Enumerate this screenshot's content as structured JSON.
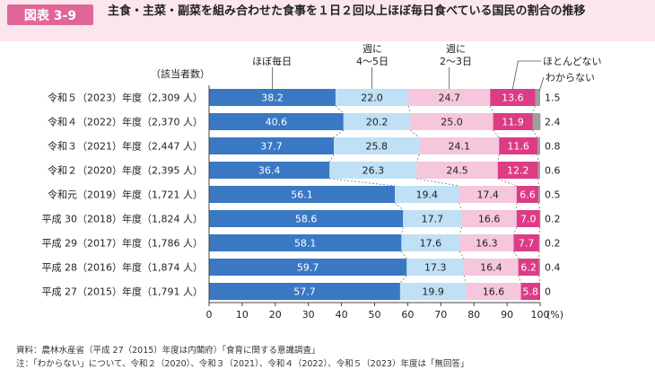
{
  "header": {
    "figure_label": "図表 3-9",
    "title": "主食・主菜・副菜を組み合わせた食事を１日２回以上ほぼ毎日食べている国民の割合の推移"
  },
  "chart_data": {
    "type": "bar",
    "orientation": "horizontal",
    "stacked": true,
    "row_axis_header": "（該当者数）",
    "categories": [
      "令和５（2023）年度（2,309 人）",
      "令和４（2022）年度（2,370 人）",
      "令和３（2021）年度（2,447 人）",
      "令和２（2020）年度（2,395 人）",
      "令和元（2019）年度（1,721 人）",
      "平成 30（2018）年度（1,824 人）",
      "平成 29（2017）年度（1,786 人）",
      "平成 28（2016）年度（1,874 人）",
      "平成 27（2015）年度（1,791 人）"
    ],
    "series": [
      {
        "name": "ほぼ毎日",
        "color": "#3a78c3",
        "label_color": "#ffffff",
        "values": [
          38.2,
          40.6,
          37.7,
          36.4,
          56.1,
          58.6,
          58.1,
          59.7,
          57.7
        ]
      },
      {
        "name": "週に4〜5日",
        "color": "#bfe0f5",
        "label_color": "#222222",
        "values": [
          22.0,
          20.2,
          25.8,
          26.3,
          19.4,
          17.7,
          17.6,
          17.3,
          19.9
        ]
      },
      {
        "name": "週に2〜3日",
        "color": "#f5c6dc",
        "label_color": "#222222",
        "values": [
          24.7,
          25.0,
          24.1,
          24.5,
          17.4,
          16.6,
          16.3,
          16.4,
          16.6
        ]
      },
      {
        "name": "ほとんどない",
        "color": "#dc3c86",
        "label_color": "#ffffff",
        "values": [
          13.6,
          11.9,
          11.6,
          12.2,
          6.6,
          7.0,
          7.7,
          6.2,
          5.8
        ]
      },
      {
        "name": "わからない",
        "color": "#9e9e9e",
        "label_color": "#222222",
        "values": [
          1.5,
          2.4,
          0.8,
          0.6,
          0.5,
          0.2,
          0.2,
          0.4,
          0.0
        ]
      }
    ],
    "outside_labels": [
      "1.5",
      "2.4",
      "0.8",
      "0.6",
      "0.5",
      "0.2",
      "0.2",
      "0.4",
      "0"
    ],
    "legend_top": [
      {
        "text": "ほぼ毎日"
      },
      {
        "text": "週に\n4〜5日"
      },
      {
        "text": "週に\n2〜3日"
      },
      {
        "text": "ほとんどない"
      },
      {
        "text": "わからない"
      }
    ],
    "xlim": [
      0,
      100
    ],
    "x_ticks": [
      0,
      10,
      20,
      30,
      40,
      50,
      60,
      70,
      80,
      90,
      100
    ],
    "xlabel": "(%)",
    "grid": false
  },
  "footnotes": {
    "source": "資料：農林水産省（平成 27（2015）年度は内閣府）「食育に関する意識調査」",
    "note": "注：「わからない」について、令和２（2020）、令和３（2021）、令和４（2022）、令和５（2023）年度は「無回答」"
  }
}
